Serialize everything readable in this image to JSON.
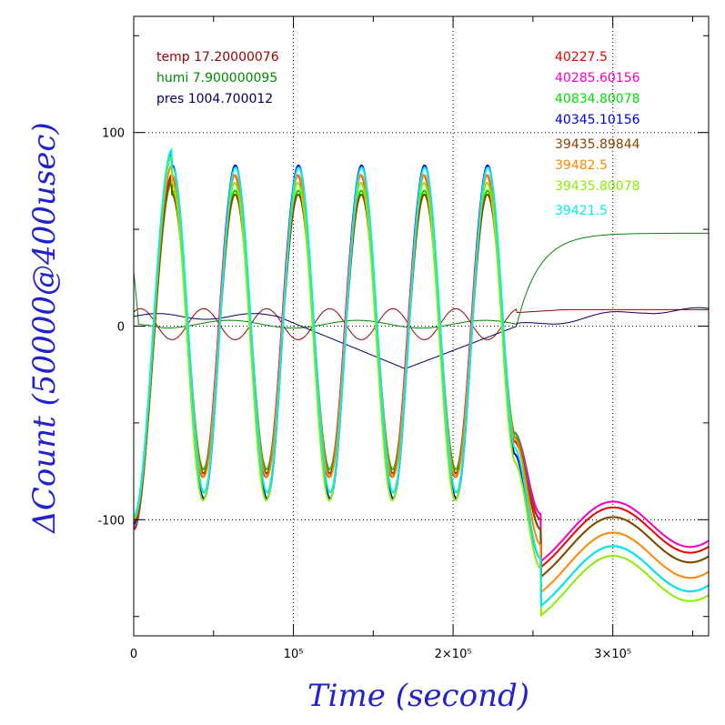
{
  "chart_data": {
    "type": "line",
    "title": "",
    "xlabel": "Time (second)",
    "ylabel": "ΔCount (50000@400usec)",
    "xlim": [
      0,
      360000
    ],
    "ylim": [
      -160,
      160
    ],
    "x_ticks": [
      {
        "value": 0,
        "label": "0"
      },
      {
        "value": 100000,
        "label": "10⁵"
      },
      {
        "value": 200000,
        "label": "2×10⁵"
      },
      {
        "value": 300000,
        "label": "3×10⁵"
      }
    ],
    "y_ticks": [
      {
        "value": -100,
        "label": "-100"
      },
      {
        "value": 0,
        "label": "0"
      },
      {
        "value": 100,
        "label": "100"
      }
    ],
    "grid": "dotted at labeled ticks",
    "env_legend": [
      {
        "text": "temp 17.20000076",
        "color": "#990000"
      },
      {
        "text": "humi 7.900000095",
        "color": "#008800"
      },
      {
        "text": "pres 1004.700012",
        "color": "#000066"
      }
    ],
    "series": [
      {
        "name": "40227.5",
        "color": "#ee0000",
        "amp": 78,
        "phase": 0.06,
        "end_level": -100,
        "dip": 8,
        "offset": 0
      },
      {
        "name": "40285.60156",
        "color": "#ee00cc",
        "amp": 76,
        "phase": 0.02,
        "end_level": -97,
        "dip": 8,
        "offset": 2
      },
      {
        "name": "40834.80078",
        "color": "#00dd00",
        "amp": 72,
        "phase": 0.0,
        "end_level": -105,
        "dip": 8,
        "offset": -2
      },
      {
        "name": "40345.10156",
        "color": "#0000dd",
        "amp": 86,
        "phase": -0.02,
        "end_level": -120,
        "dip": 8,
        "offset": -3
      },
      {
        "name": "39435.89844",
        "color": "#884400",
        "amp": 72,
        "phase": 0.0,
        "end_level": -105,
        "dip": 8,
        "offset": -4
      },
      {
        "name": "39482.5",
        "color": "#ff8800",
        "amp": 78,
        "phase": 0.0,
        "end_level": -113,
        "dip": 8,
        "offset": 0
      },
      {
        "name": "39435.80078",
        "color": "#88ee00",
        "amp": 82,
        "phase": 0.04,
        "end_level": -125,
        "dip": 8,
        "offset": -8
      },
      {
        "name": "39421.5",
        "color": "#00eeee",
        "amp": 84,
        "phase": -0.04,
        "end_level": -120,
        "dip": 8,
        "offset": -2
      }
    ]
  }
}
